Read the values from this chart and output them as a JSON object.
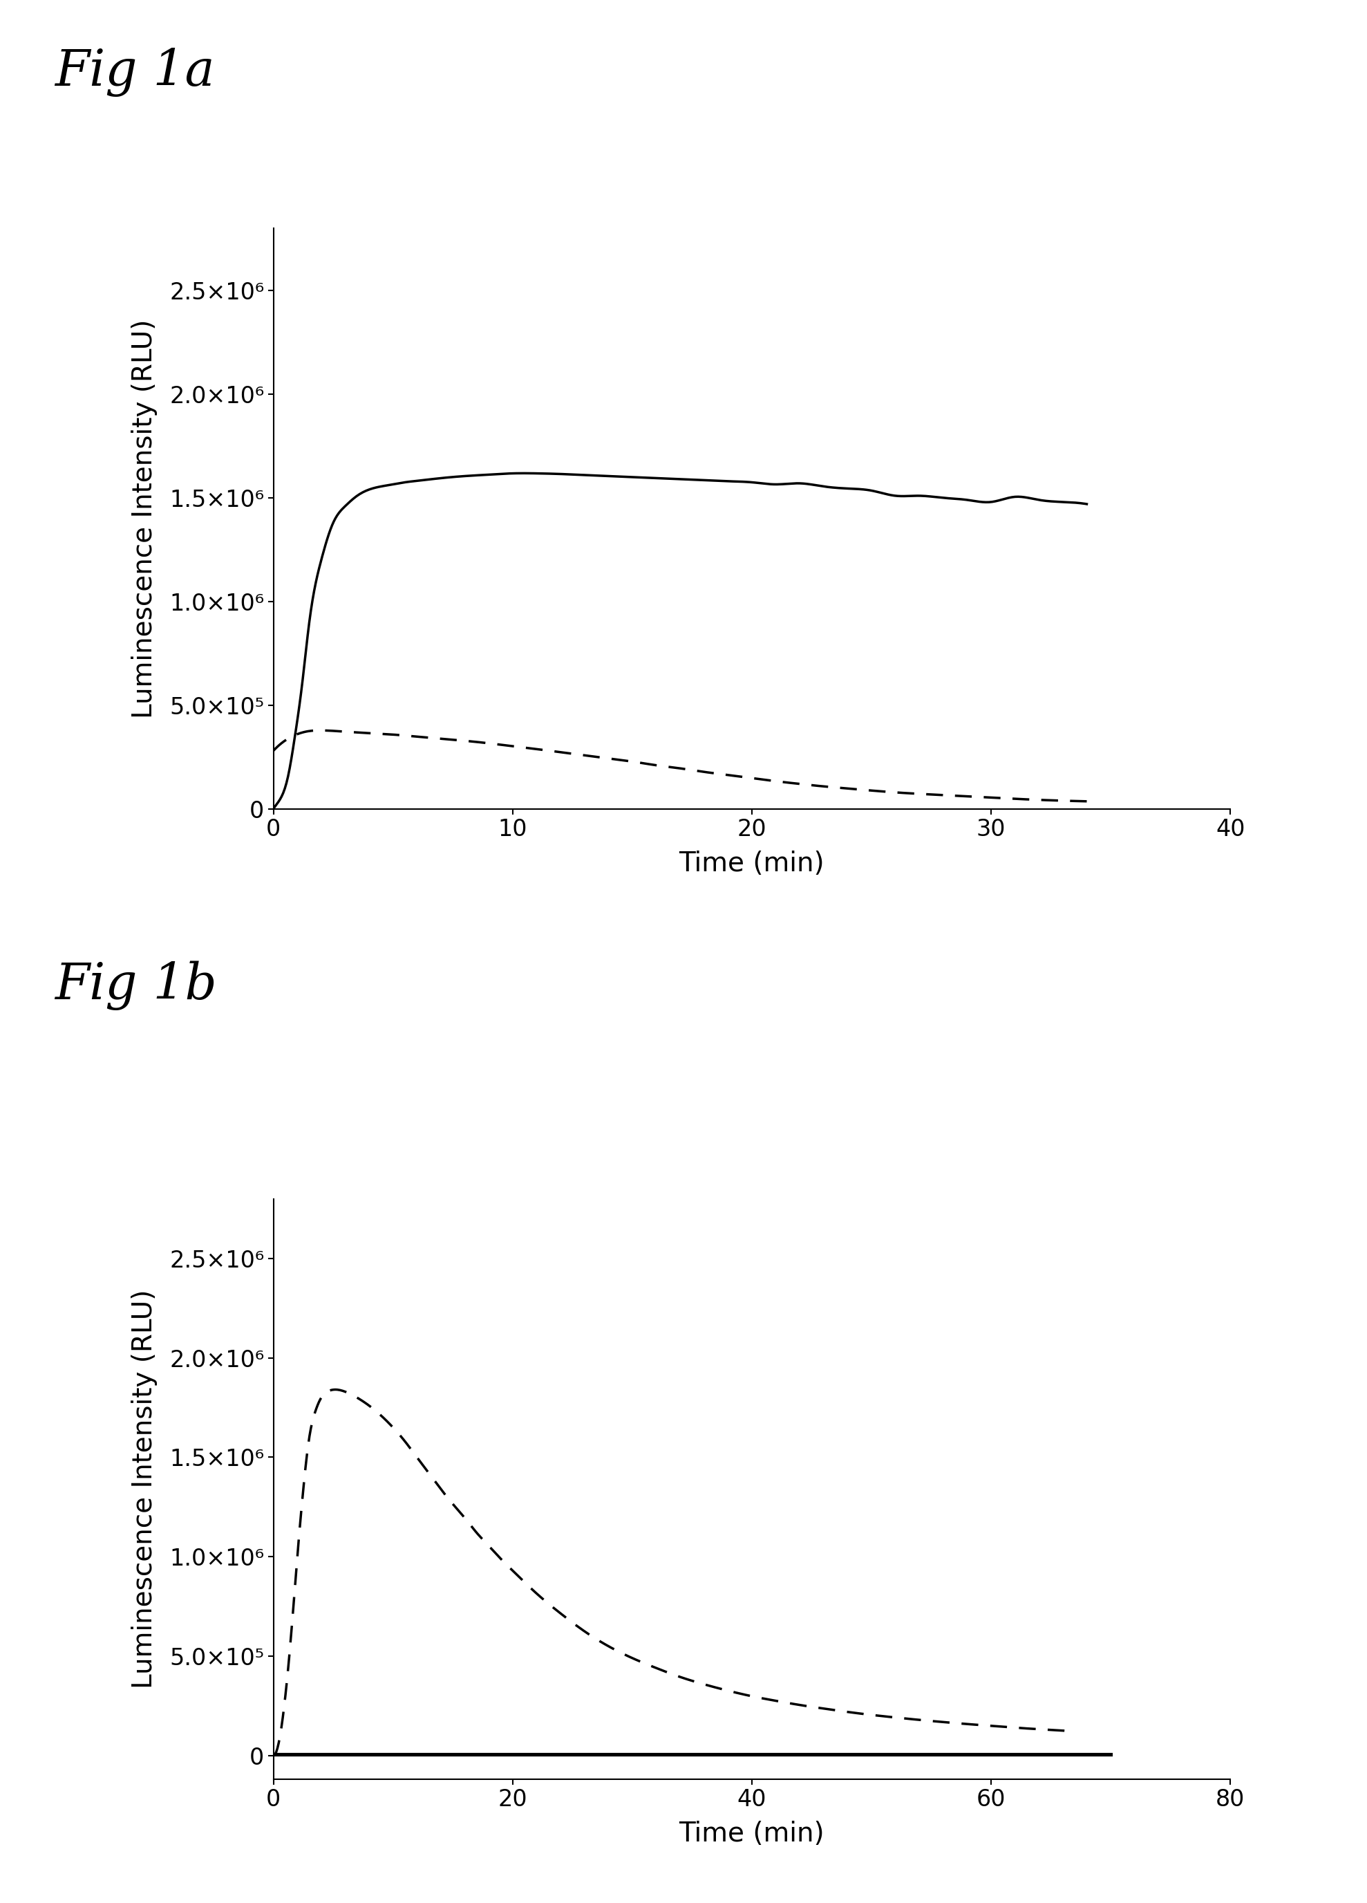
{
  "fig_a_label": "Fig 1a",
  "fig_b_label": "Fig 1b",
  "ylabel": "Luminescence Intensity (RLU)",
  "xlabel": "Time (min)",
  "background_color": "#ffffff",
  "fig_a": {
    "xlim": [
      0,
      40
    ],
    "ylim": [
      0,
      2800000.0
    ],
    "xticks": [
      0,
      10,
      20,
      30,
      40
    ],
    "yticks": [
      0,
      500000.0,
      1000000.0,
      1500000.0,
      2000000.0,
      2500000.0
    ],
    "yticklabels": [
      "0",
      "5.0×10⁵",
      "1.0×10⁶",
      "1.5×10⁶",
      "2.0×10⁶",
      "2.5×10⁶"
    ],
    "solid_line": {
      "x": [
        0,
        0.3,
        0.6,
        0.9,
        1.2,
        1.5,
        2,
        2.5,
        3,
        3.5,
        4,
        4.5,
        5,
        5.5,
        6,
        7,
        8,
        9,
        10,
        11,
        12,
        13,
        14,
        15,
        16,
        17,
        18,
        19,
        20,
        21,
        22,
        23,
        24,
        25,
        26,
        27,
        28,
        29,
        30,
        31,
        32,
        33,
        34
      ],
      "y": [
        0,
        50000,
        150000,
        350000,
        600000,
        900000,
        1200000,
        1380000,
        1460000,
        1510000,
        1540000,
        1555000,
        1565000,
        1575000,
        1582000,
        1595000,
        1605000,
        1612000,
        1618000,
        1618000,
        1615000,
        1610000,
        1605000,
        1600000,
        1595000,
        1590000,
        1585000,
        1580000,
        1575000,
        1565000,
        1570000,
        1555000,
        1545000,
        1535000,
        1510000,
        1510000,
        1500000,
        1490000,
        1480000,
        1505000,
        1490000,
        1480000,
        1470000
      ]
    },
    "dashed_line": {
      "x": [
        0,
        0.5,
        1,
        1.5,
        2,
        3,
        4,
        5,
        6,
        7,
        8,
        9,
        10,
        11,
        12,
        13,
        14,
        15,
        16,
        17,
        18,
        19,
        20,
        21,
        22,
        23,
        24,
        25,
        26,
        27,
        28,
        29,
        30,
        31,
        32,
        33,
        34
      ],
      "y": [
        280000,
        330000,
        360000,
        375000,
        378000,
        372000,
        365000,
        358000,
        348000,
        338000,
        328000,
        316000,
        302000,
        288000,
        273000,
        258000,
        243000,
        228000,
        210000,
        195000,
        178000,
        163000,
        148000,
        133000,
        120000,
        108000,
        98000,
        88000,
        79000,
        72000,
        66000,
        60000,
        54000,
        48000,
        43000,
        39000,
        36000
      ]
    }
  },
  "fig_b": {
    "xlim": [
      0,
      80
    ],
    "ylim": [
      -120000.0,
      2800000.0
    ],
    "xticks": [
      0,
      20,
      40,
      60,
      80
    ],
    "yticks": [
      0,
      500000.0,
      1000000.0,
      1500000.0,
      2000000.0,
      2500000.0
    ],
    "yticklabels": [
      "0",
      "5.0×10⁵",
      "1.0×10⁶",
      "1.5×10⁶",
      "2.0×10⁶",
      "2.5×10⁶"
    ],
    "dashed_line": {
      "x": [
        0,
        0.5,
        1,
        1.5,
        2,
        2.5,
        3,
        3.5,
        4,
        4.5,
        5,
        6,
        7,
        8,
        9,
        10,
        11,
        12,
        13,
        14,
        15,
        16,
        17,
        18,
        19,
        20,
        22,
        24,
        26,
        28,
        30,
        32,
        34,
        36,
        38,
        40,
        42,
        44,
        46,
        48,
        50,
        52,
        54,
        56,
        58,
        60,
        62,
        64,
        66,
        67
      ],
      "y": [
        0,
        80000,
        300000,
        620000,
        1000000,
        1340000,
        1600000,
        1730000,
        1800000,
        1830000,
        1840000,
        1830000,
        1800000,
        1760000,
        1710000,
        1650000,
        1580000,
        1500000,
        1420000,
        1340000,
        1265000,
        1195000,
        1120000,
        1055000,
        990000,
        930000,
        815000,
        715000,
        625000,
        550000,
        490000,
        440000,
        395000,
        358000,
        326000,
        298000,
        275000,
        254000,
        236000,
        219000,
        204000,
        191000,
        179000,
        168000,
        158000,
        149000,
        340000,
        330000,
        295000,
        283000
      ]
    },
    "solid_line": {
      "x": [
        0,
        70
      ],
      "y": [
        5000,
        5000
      ]
    }
  },
  "line_color": "#000000",
  "label_fontsize": 28,
  "tick_fontsize": 24,
  "fig_label_fontsize": 52,
  "line_width": 2.5
}
